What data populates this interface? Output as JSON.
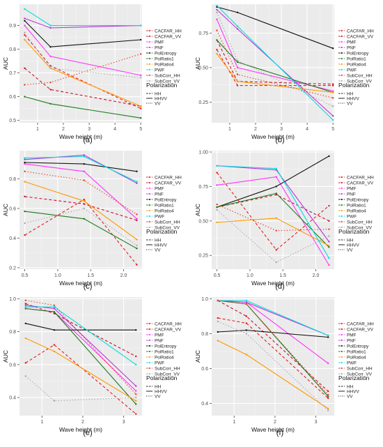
{
  "colors": {
    "CACFAR_HH": "#e41a1c",
    "CACFAR_VV": "#c8102e",
    "PMF": "#ff33ff",
    "PNF": "#bb33dd",
    "PolEntropy": "#111111",
    "PolRatio1": "#1a7a1a",
    "PolRatio4": "#ff9900",
    "PWF": "#00dddd",
    "SubCorr_HH": "#e8402a",
    "SubCorr_VV": "#aaaaaa"
  },
  "legend": {
    "series_title": "",
    "polarization_title": "Polarization",
    "polarization": [
      "HH",
      "HHVV",
      "VV"
    ]
  },
  "chart_data": [
    {
      "type": "line",
      "panel_label": "(a)",
      "xlabel": "Wave height (m)",
      "ylabel": "AUC",
      "xlim": [
        0.3,
        5.05
      ],
      "ylim": [
        0.49,
        0.99
      ],
      "xticks": [
        1,
        2,
        3,
        4,
        5
      ],
      "yticks": [
        0.5,
        0.6,
        0.7,
        0.8,
        0.9
      ],
      "ytick_labels": [
        "0.5",
        "0.6",
        "0.7",
        "0.8",
        "0.9"
      ],
      "x": [
        0.5,
        1.5,
        5
      ],
      "legend_entries": [
        "CACFAR_HH",
        "CACFAR_VV",
        "PMF",
        "PNF",
        "PolEntropy",
        "PolRatio1",
        "PolRatio4",
        "PWF",
        "SubCorr_HH",
        "SubCorr_VV"
      ],
      "series": [
        {
          "name": "CACFAR_HH",
          "key": "CACFAR_HH",
          "pol": "HH",
          "values": [
            0.86,
            0.73,
            0.55
          ]
        },
        {
          "name": "CACFAR_VV",
          "key": "CACFAR_VV",
          "pol": "HH",
          "values": [
            0.72,
            0.63,
            0.56
          ]
        },
        {
          "name": "PMF",
          "key": "PMF",
          "pol": "HHVV",
          "values": [
            0.9,
            0.77,
            0.69
          ]
        },
        {
          "name": "PNF",
          "key": "PNF",
          "pol": "HHVV",
          "values": [
            0.93,
            0.89,
            0.9
          ]
        },
        {
          "name": "PolEntropy",
          "key": "PolEntropy",
          "pol": "HHVV",
          "values": [
            0.92,
            0.81,
            0.84
          ]
        },
        {
          "name": "PolRatio1",
          "key": "PolRatio1",
          "pol": "HHVV",
          "values": [
            0.6,
            0.57,
            0.51
          ]
        },
        {
          "name": "PolRatio4",
          "key": "PolRatio4",
          "pol": "HHVV",
          "values": [
            0.84,
            0.72,
            0.56
          ]
        },
        {
          "name": "PWF",
          "key": "PWF",
          "pol": "HHVV",
          "values": [
            0.97,
            0.9,
            0.9
          ]
        },
        {
          "name": "SubCorr_HH",
          "key": "SubCorr_HH",
          "pol": "VV",
          "values": [
            0.65,
            0.66,
            0.78
          ]
        },
        {
          "name": "SubCorr_VV",
          "key": "SubCorr_VV",
          "pol": "VV",
          "values": [
            0.87,
            0.72,
            0.68
          ]
        }
      ]
    },
    {
      "type": "line",
      "panel_label": "(b)",
      "xlabel": "Wave height (m)",
      "ylabel": "AUC",
      "xlim": [
        0.3,
        5.05
      ],
      "ylim": [
        0.1,
        0.96
      ],
      "xticks": [
        1,
        2,
        3,
        4,
        5
      ],
      "yticks": [
        0.25,
        0.5,
        0.75
      ],
      "ytick_labels": [
        "0.25",
        "0.50",
        "0.75"
      ],
      "x": [
        0.5,
        1.3,
        5
      ],
      "legend_entries": [
        "CACFAR_HH",
        "CACFAR_VV",
        "PMF",
        "PNF",
        "PolEntropy",
        "PolRatio1",
        "PolRatio4",
        "PWF",
        "SubCorr_HH",
        "SubCorr_VV"
      ],
      "series": [
        {
          "name": "CACFAR_HH",
          "key": "CACFAR_HH",
          "pol": "HH",
          "values": [
            0.63,
            0.37,
            0.37
          ]
        },
        {
          "name": "CACFAR_VV",
          "key": "CACFAR_VV",
          "pol": "HH",
          "values": [
            0.7,
            0.4,
            0.38
          ]
        },
        {
          "name": "PMF",
          "key": "PMF",
          "pol": "HHVV",
          "values": [
            0.85,
            0.5,
            0.33
          ]
        },
        {
          "name": "PNF",
          "key": "PNF",
          "pol": "HHVV",
          "values": [
            0.92,
            0.78,
            0.15
          ]
        },
        {
          "name": "PolEntropy",
          "key": "PolEntropy",
          "pol": "HHVV",
          "values": [
            0.94,
            0.9,
            0.64
          ]
        },
        {
          "name": "PolRatio1",
          "key": "PolRatio1",
          "pol": "HHVV",
          "values": [
            0.7,
            0.54,
            0.32
          ]
        },
        {
          "name": "PolRatio4",
          "key": "PolRatio4",
          "pol": "HHVV",
          "values": [
            0.6,
            0.4,
            0.32
          ]
        },
        {
          "name": "PWF",
          "key": "PWF",
          "pol": "HHVV",
          "values": [
            0.95,
            0.8,
            0.12
          ]
        },
        {
          "name": "SubCorr_HH",
          "key": "SubCorr_HH",
          "pol": "VV",
          "values": [
            0.77,
            0.45,
            0.28
          ]
        },
        {
          "name": "SubCorr_VV",
          "key": "SubCorr_VV",
          "pol": "VV",
          "values": [
            0.9,
            0.55,
            0.22
          ]
        }
      ]
    },
    {
      "type": "line",
      "panel_label": "(c)",
      "xlabel": "Wave height (m)",
      "ylabel": "AUC",
      "xlim": [
        0.42,
        2.28
      ],
      "ylim": [
        0.19,
        0.99
      ],
      "xticks": [
        0.5,
        1.0,
        1.5,
        2.0
      ],
      "yticks": [
        0.2,
        0.4,
        0.6,
        0.8
      ],
      "xtick_labels": [
        "0.5",
        "1.0",
        "1.5",
        "2.0"
      ],
      "ytick_labels": [
        "0.2",
        "0.4",
        "0.6",
        "0.8"
      ],
      "x": [
        0.5,
        1.4,
        2.2
      ],
      "legend_entries": [
        "CACFAR_HH",
        "CACFAR_VV",
        "PMF",
        "PNF",
        "PolEntropy",
        "PolRatio1",
        "PolRatio4",
        "PWF",
        "SubCorr_HH",
        "SubCorr_VV"
      ],
      "series": [
        {
          "name": "CACFAR_HH",
          "key": "CACFAR_HH",
          "pol": "HH",
          "values": [
            0.42,
            0.66,
            0.22
          ]
        },
        {
          "name": "CACFAR_VV",
          "key": "CACFAR_VV",
          "pol": "HH",
          "values": [
            0.68,
            0.63,
            0.52
          ]
        },
        {
          "name": "PMF",
          "key": "PMF",
          "pol": "HHVV",
          "values": [
            0.9,
            0.85,
            0.53
          ]
        },
        {
          "name": "PNF",
          "key": "PNF",
          "pol": "HHVV",
          "values": [
            0.93,
            0.96,
            0.77
          ]
        },
        {
          "name": "PolEntropy",
          "key": "PolEntropy",
          "pol": "HHVV",
          "values": [
            0.91,
            0.9,
            0.85
          ]
        },
        {
          "name": "PolRatio1",
          "key": "PolRatio1",
          "pol": "HHVV",
          "values": [
            0.58,
            0.53,
            0.33
          ]
        },
        {
          "name": "PolRatio4",
          "key": "PolRatio4",
          "pol": "HHVV",
          "values": [
            0.78,
            0.65,
            0.39
          ]
        },
        {
          "name": "PWF",
          "key": "PWF",
          "pol": "HHVV",
          "values": [
            0.94,
            0.95,
            0.78
          ]
        },
        {
          "name": "SubCorr_HH",
          "key": "SubCorr_HH",
          "pol": "VV",
          "values": [
            0.85,
            0.79,
            0.56
          ]
        },
        {
          "name": "SubCorr_VV",
          "key": "SubCorr_VV",
          "pol": "VV",
          "values": [
            0.5,
            0.6,
            0.35
          ]
        }
      ]
    },
    {
      "type": "line",
      "panel_label": "(d)",
      "xlabel": "Wave height (m)",
      "ylabel": "AUC",
      "xlim": [
        0.42,
        2.28
      ],
      "ylim": [
        0.15,
        1.01
      ],
      "xticks": [
        0.5,
        1.0,
        1.5,
        2.0
      ],
      "yticks": [
        0.25,
        0.5,
        0.75,
        1.0
      ],
      "xtick_labels": [
        "0.5",
        "1.0",
        "1.5",
        "2.0"
      ],
      "ytick_labels": [
        "0.25",
        "0.50",
        "0.75",
        "1.00"
      ],
      "x": [
        0.5,
        1.4,
        2.2
      ],
      "legend_entries": [
        "CACFAR_HH",
        "CACFAR_VV",
        "PMF",
        "PNF",
        "PolEntropy",
        "PolRatio1",
        "PolRatio4",
        "PWF",
        "SubCorr_HH",
        "SubCorr_VV"
      ],
      "series": [
        {
          "name": "CACFAR_HH",
          "key": "CACFAR_HH",
          "pol": "HH",
          "values": [
            0.85,
            0.29,
            0.61
          ]
        },
        {
          "name": "CACFAR_VV",
          "key": "CACFAR_VV",
          "pol": "HH",
          "values": [
            0.6,
            0.69,
            0.5
          ]
        },
        {
          "name": "PMF",
          "key": "PMF",
          "pol": "HHVV",
          "values": [
            0.76,
            0.82,
            0.18
          ]
        },
        {
          "name": "PNF",
          "key": "PNF",
          "pol": "HHVV",
          "values": [
            0.9,
            0.87,
            0.35
          ]
        },
        {
          "name": "PolEntropy",
          "key": "PolEntropy",
          "pol": "HHVV",
          "values": [
            0.6,
            0.75,
            0.97
          ]
        },
        {
          "name": "PolRatio1",
          "key": "PolRatio1",
          "pol": "HHVV",
          "values": [
            0.6,
            0.7,
            0.31
          ]
        },
        {
          "name": "PolRatio4",
          "key": "PolRatio4",
          "pol": "HHVV",
          "values": [
            0.49,
            0.52,
            0.32
          ]
        },
        {
          "name": "PWF",
          "key": "PWF",
          "pol": "HHVV",
          "values": [
            0.9,
            0.88,
            0.23
          ]
        },
        {
          "name": "SubCorr_HH",
          "key": "SubCorr_HH",
          "pol": "VV",
          "values": [
            0.62,
            0.43,
            0.44
          ]
        },
        {
          "name": "SubCorr_VV",
          "key": "SubCorr_VV",
          "pol": "VV",
          "values": [
            0.58,
            0.2,
            0.39
          ]
        }
      ]
    },
    {
      "type": "line",
      "panel_label": "(e)",
      "xlabel": "Wave height (m)",
      "ylabel": "AUC",
      "xlim": [
        0.45,
        3.45
      ],
      "ylim": [
        0.29,
        1.01
      ],
      "xticks": [
        1,
        2,
        3
      ],
      "yticks": [
        0.4,
        0.6,
        0.8,
        1.0
      ],
      "ytick_labels": [
        "0.4",
        "0.6",
        "0.8",
        "1.0"
      ],
      "x": [
        0.6,
        1.3,
        3.3
      ],
      "legend_entries": [
        "CACFAR_HH",
        "CACFAR_VV",
        "PMF",
        "PNF",
        "PolEntropy",
        "PolRatio1",
        "PolRatio4",
        "PWF",
        "SubCorr_HH",
        "SubCorr_VV"
      ],
      "series": [
        {
          "name": "CACFAR_HH",
          "key": "CACFAR_HH",
          "pol": "HH",
          "values": [
            0.61,
            0.72,
            0.3
          ]
        },
        {
          "name": "CACFAR_VV",
          "key": "CACFAR_VV",
          "pol": "HH",
          "values": [
            0.97,
            0.91,
            0.65
          ]
        },
        {
          "name": "PMF",
          "key": "PMF",
          "pol": "HHVV",
          "values": [
            0.94,
            0.92,
            0.44
          ]
        },
        {
          "name": "PNF",
          "key": "PNF",
          "pol": "HHVV",
          "values": [
            0.96,
            0.94,
            0.47
          ]
        },
        {
          "name": "PolEntropy",
          "key": "PolEntropy",
          "pol": "HHVV",
          "values": [
            0.85,
            0.81,
            0.81
          ]
        },
        {
          "name": "PolRatio1",
          "key": "PolRatio1",
          "pol": "HHVV",
          "values": [
            0.94,
            0.92,
            0.36
          ]
        },
        {
          "name": "PolRatio4",
          "key": "PolRatio4",
          "pol": "HHVV",
          "values": [
            0.76,
            0.68,
            0.38
          ]
        },
        {
          "name": "PWF",
          "key": "PWF",
          "pol": "HHVV",
          "values": [
            0.95,
            0.95,
            0.6
          ]
        },
        {
          "name": "SubCorr_HH",
          "key": "SubCorr_HH",
          "pol": "VV",
          "values": [
            0.99,
            0.96,
            0.42
          ]
        },
        {
          "name": "SubCorr_VV",
          "key": "SubCorr_VV",
          "pol": "VV",
          "values": [
            0.53,
            0.38,
            0.4
          ]
        }
      ]
    },
    {
      "type": "line",
      "panel_label": "(f)",
      "xlabel": "Wave height (m)",
      "ylabel": "AUC",
      "xlim": [
        0.45,
        3.45
      ],
      "ylim": [
        0.33,
        1.01
      ],
      "xticks": [
        1,
        2,
        3
      ],
      "yticks": [
        0.4,
        0.6,
        0.8,
        1.0
      ],
      "ytick_labels": [
        "0.4",
        "0.6",
        "0.8",
        "1.0"
      ],
      "x": [
        0.6,
        1.3,
        3.3
      ],
      "legend_entries": [
        "CACFAR_HH",
        "CACFAR_VV",
        "PMF",
        "PNF",
        "PolEntropy",
        "PolRatio1",
        "PolRatio4",
        "PWF",
        "SubCorr_HH",
        "SubCorr_VV"
      ],
      "series": [
        {
          "name": "CACFAR_HH",
          "key": "CACFAR_HH",
          "pol": "HH",
          "values": [
            0.89,
            0.86,
            0.43
          ]
        },
        {
          "name": "CACFAR_VV",
          "key": "CACFAR_VV",
          "pol": "HH",
          "values": [
            0.99,
            0.9,
            0.47
          ]
        },
        {
          "name": "PMF",
          "key": "PMF",
          "pol": "HHVV",
          "values": [
            0.99,
            0.98,
            0.63
          ]
        },
        {
          "name": "PNF",
          "key": "PNF",
          "pol": "HHVV",
          "values": [
            0.99,
            0.98,
            0.79
          ]
        },
        {
          "name": "PolEntropy",
          "key": "PolEntropy",
          "pol": "HHVV",
          "values": [
            0.81,
            0.82,
            0.78
          ]
        },
        {
          "name": "PolRatio1",
          "key": "PolRatio1",
          "pol": "HHVV",
          "values": [
            0.99,
            0.97,
            0.44
          ]
        },
        {
          "name": "PolRatio4",
          "key": "PolRatio4",
          "pol": "HHVV",
          "values": [
            0.76,
            0.68,
            0.37
          ]
        },
        {
          "name": "PWF",
          "key": "PWF",
          "pol": "HHVV",
          "values": [
            0.99,
            0.99,
            0.79
          ]
        },
        {
          "name": "SubCorr_HH",
          "key": "SubCorr_HH",
          "pol": "VV",
          "values": [
            0.99,
            0.97,
            0.45
          ]
        },
        {
          "name": "SubCorr_VV",
          "key": "SubCorr_VV",
          "pol": "VV",
          "values": [
            0.87,
            0.8,
            0.36
          ]
        }
      ]
    }
  ]
}
